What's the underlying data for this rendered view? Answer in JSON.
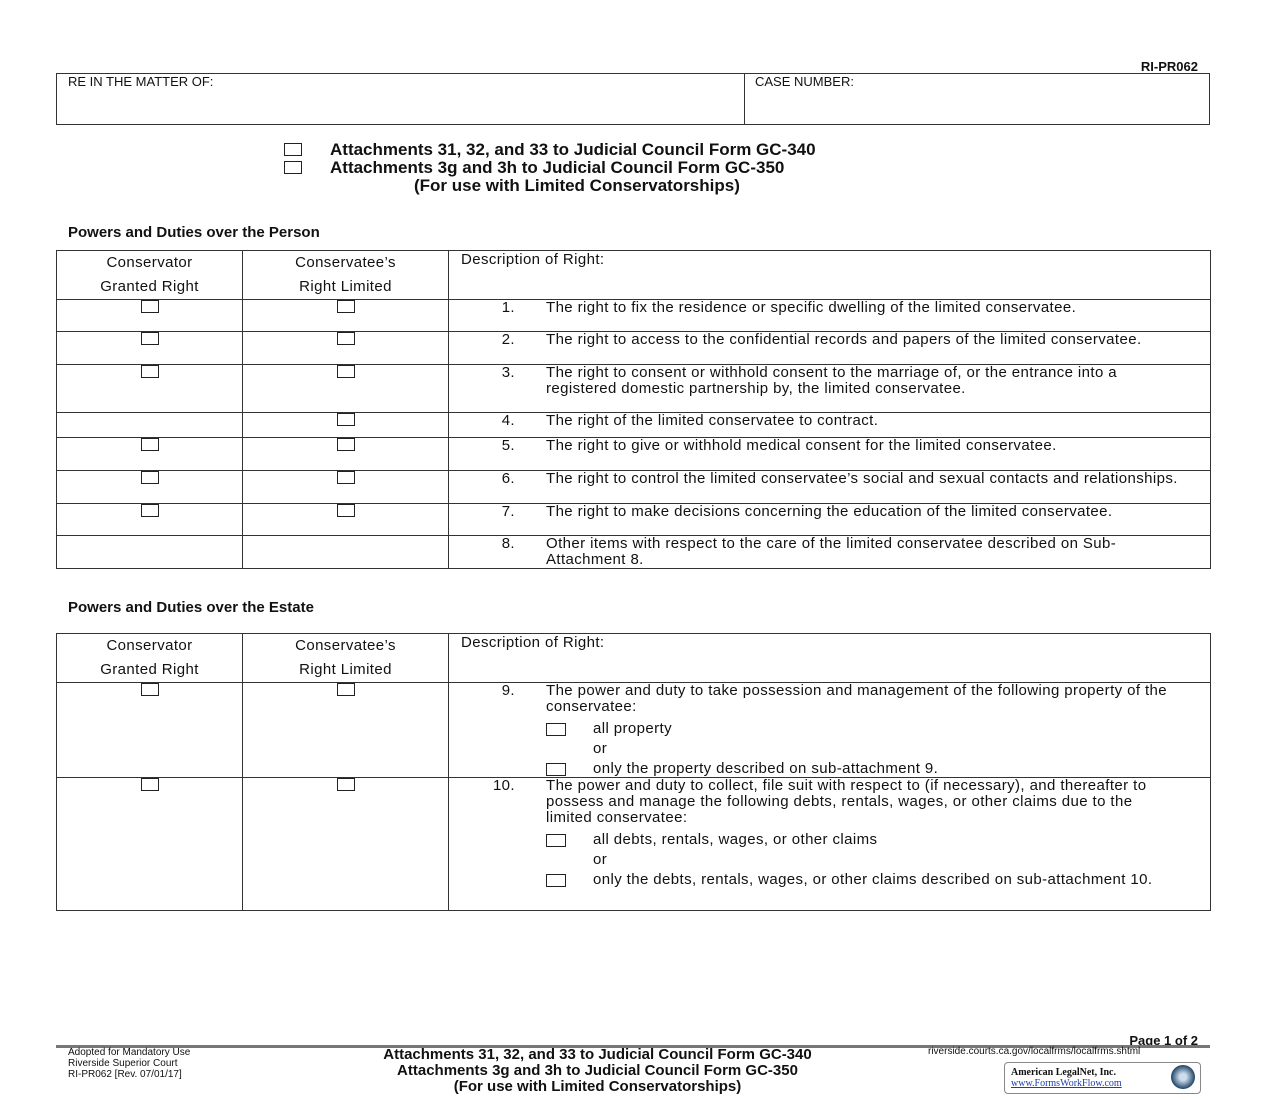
{
  "form_id": "RI-PR062",
  "header": {
    "matter_label": "RE IN THE MATTER OF:",
    "case_label": "CASE NUMBER:"
  },
  "title": {
    "line1": "Attachments 31, 32, and 33 to Judicial Council Form GC-340",
    "line2": "Attachments 3g and 3h to Judicial Council Form GC-350",
    "line3": "(For use with Limited Conservatorships)"
  },
  "columns": {
    "c1a": "Conservator",
    "c1b": "Granted Right",
    "c2a": "Conservatee’s",
    "c2b": "Right Limited",
    "c3": "Description of Right:"
  },
  "person": {
    "heading": "Powers and Duties over the Person",
    "rows": [
      {
        "num": "1.",
        "text": "The right to fix the residence or specific dwelling of the limited conservatee.",
        "c1": true,
        "c2": true
      },
      {
        "num": "2.",
        "text": "The right to access to the confidential records and papers of the limited conservatee.",
        "c1": true,
        "c2": true
      },
      {
        "num": "3.",
        "text": "The right to consent or withhold consent to the marriage of, or the entrance into a registered domestic partnership by, the limited conservatee.",
        "c1": true,
        "c2": true
      },
      {
        "num": "4.",
        "text": "The right of the limited conservatee to contract.",
        "c1": false,
        "c2": true
      },
      {
        "num": "5.",
        "text": "The right to give or withhold medical consent for the limited conservatee.",
        "c1": true,
        "c2": true
      },
      {
        "num": "6.",
        "text": "The right to control the limited conservatee’s social and sexual contacts and relationships.",
        "c1": true,
        "c2": true
      },
      {
        "num": "7.",
        "text": "The right to make decisions concerning the education of the limited conservatee.",
        "c1": true,
        "c2": true
      },
      {
        "num": "8.",
        "text": "Other items with respect to the care of the limited conservatee described on Sub-Attachment 8.",
        "c1": false,
        "c2": false
      }
    ]
  },
  "estate": {
    "heading": "Powers and Duties over the Estate",
    "rows": [
      {
        "num": "9.",
        "text": "The power and duty to take possession and management of the following property of the conservatee:",
        "c1": true,
        "c2": true,
        "opt1": "all property",
        "or": "or",
        "opt2": "only the property described on sub-attachment 9."
      },
      {
        "num": "10.",
        "text": "The power and duty to collect, file suit with respect to (if necessary), and thereafter to possess and manage the following debts, rentals, wages, or other claims due to the limited conservatee:",
        "c1": true,
        "c2": true,
        "opt1": "all debts, rentals, wages, or other claims",
        "or": "or",
        "opt2": "only the debts, rentals, wages, or other claims described on sub-attachment 10."
      }
    ]
  },
  "footer": {
    "left1": "Adopted for Mandatory Use",
    "left2": "Riverside Superior Court",
    "left3": "RI-PR062 [Rev. 07/01/17]",
    "center1": "Attachments 31, 32, and 33 to Judicial Council Form GC-340",
    "center2": "Attachments 3g and 3h to Judicial Council Form GC-350",
    "center3": "(For use with Limited Conservatorships)",
    "url": "riverside.courts.ca.gov/localfrms/localfrms.shtml",
    "page": "Page 1 of 2",
    "logo1": "American LegalNet, Inc.",
    "logo2": "www.FormsWorkFlow.com"
  }
}
